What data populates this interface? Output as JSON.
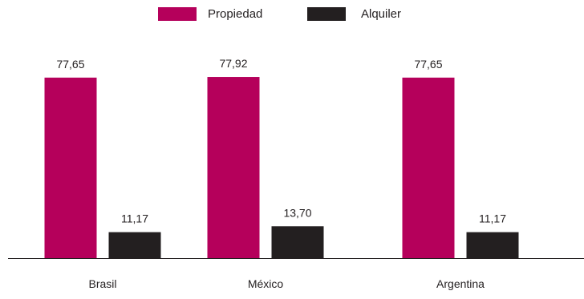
{
  "chart_data": {
    "type": "bar",
    "categories": [
      "Brasil",
      "México",
      "Argentina"
    ],
    "series": [
      {
        "name": "Propiedad",
        "values": [
          77.65,
          77.92,
          77.65
        ],
        "labels": [
          "77,65",
          "77,92",
          "77,65"
        ],
        "color": "#b5005b"
      },
      {
        "name": "Alquiler",
        "values": [
          11.17,
          13.7,
          11.17
        ],
        "labels": [
          "11,17",
          "13,70",
          "11,17"
        ],
        "color": "#231f20"
      }
    ],
    "ylim": [
      0,
      100
    ],
    "grid": false,
    "legend_position": "top-center"
  }
}
